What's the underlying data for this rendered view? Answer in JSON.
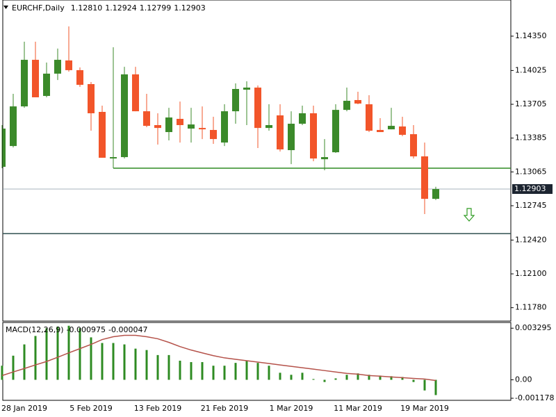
{
  "chart_data": [
    {
      "type": "candlestick",
      "title": "EURCHF,Daily",
      "categories": [
        null,
        null,
        "28 Jan 2019",
        null,
        null,
        null,
        null,
        null,
        "5 Feb 2019",
        null,
        null,
        null,
        null,
        null,
        "13 Feb 2019",
        null,
        null,
        null,
        null,
        null,
        "21 Feb 2019",
        null,
        null,
        null,
        null,
        null,
        "1 Mar 2019",
        null,
        null,
        null,
        null,
        null,
        "11 Mar 2019",
        null,
        null,
        null,
        null,
        null,
        "19 Mar 2019",
        null
      ],
      "open": [
        1.13113,
        1.1331,
        1.13685,
        1.14126,
        1.13784,
        1.13995,
        1.1412,
        1.14028,
        1.13896,
        1.13633,
        1.13192,
        1.13205,
        1.13988,
        1.13639,
        1.13508,
        1.13442,
        1.13567,
        1.13475,
        1.13481,
        1.13462,
        1.13343,
        1.13639,
        1.13843,
        1.13863,
        1.13481,
        1.136,
        1.13271,
        1.13521,
        1.1362,
        1.13185,
        1.13251,
        1.13652,
        1.13745,
        1.13705,
        1.13462,
        1.13468,
        1.13495,
        1.13422,
        1.13212,
        1.1281
      ],
      "high": [
        1.13508,
        1.13804,
        1.14297,
        1.14297,
        1.141,
        1.14232,
        1.14442,
        1.14054,
        1.13916,
        1.13692,
        1.14245,
        1.1406,
        1.1406,
        1.13804,
        1.1362,
        1.13672,
        1.13731,
        1.13672,
        1.13685,
        1.13587,
        1.13705,
        1.13903,
        1.13922,
        1.13883,
        1.13705,
        1.13705,
        1.13639,
        1.13692,
        1.13692,
        1.13376,
        1.13705,
        1.13863,
        1.13824,
        1.13791,
        1.13574,
        1.13672,
        1.13587,
        1.13508,
        1.13343,
        1.12924
      ],
      "low": [
        1.131,
        1.13297,
        1.13672,
        1.13771,
        1.13771,
        1.13935,
        1.14014,
        1.1387,
        1.13455,
        1.13199,
        1.131,
        1.13192,
        1.13639,
        1.13488,
        1.13324,
        1.13363,
        1.13343,
        1.13343,
        1.13376,
        1.1333,
        1.1331,
        1.13521,
        1.13508,
        1.13291,
        1.13455,
        1.13258,
        1.13139,
        1.13508,
        1.13166,
        1.1308,
        1.13245,
        1.13639,
        1.13705,
        1.13442,
        1.13442,
        1.13468,
        1.13403,
        1.13192,
        1.12666,
        1.12799
      ],
      "close": [
        1.13475,
        1.13685,
        1.14126,
        1.13771,
        1.13995,
        1.14126,
        1.14028,
        1.13889,
        1.1362,
        1.13199,
        1.13205,
        1.13988,
        1.13639,
        1.13501,
        1.13481,
        1.1358,
        1.13508,
        1.13514,
        1.13468,
        1.13376,
        1.13639,
        1.1385,
        1.13863,
        1.13481,
        1.13508,
        1.13278,
        1.13521,
        1.1362,
        1.13192,
        1.13205,
        1.13652,
        1.13738,
        1.13712,
        1.13455,
        1.13442,
        1.13501,
        1.13416,
        1.13212,
        1.1281,
        1.12903
      ],
      "last_bar_labels": [
        "1.12810",
        "1.12924",
        "1.12799",
        "1.12903"
      ],
      "up_color": "#3b8a2a",
      "down_color": "#f2552a",
      "ylim": [
        1.11653,
        1.14692
      ],
      "yticks": [
        {
          "value": 1.1435,
          "label": "1.14350"
        },
        {
          "value": 1.14025,
          "label": "1.14025"
        },
        {
          "value": 1.13705,
          "label": "1.13705"
        },
        {
          "value": 1.13385,
          "label": "1.13385"
        },
        {
          "value": 1.13065,
          "label": "1.13065"
        },
        {
          "value": 1.12745,
          "label": "1.12745"
        },
        {
          "value": 1.1242,
          "label": "1.12420"
        },
        {
          "value": 1.121,
          "label": "1.12100"
        },
        {
          "value": 1.1178,
          "label": "1.11780"
        }
      ],
      "support_line": {
        "value": 1.131,
        "start_index": 10,
        "color": "#2e8b22"
      },
      "level_line": {
        "value": 1.12481,
        "color": "#2f4f4f"
      },
      "price_line_color": "#8a9aa8"
    },
    {
      "type": "macd",
      "title": "MACD(12,26,9)",
      "histogram": [
        0.0009,
        0.00154,
        0.00226,
        0.0028,
        0.0033,
        0.0034,
        0.00345,
        0.0033,
        0.00271,
        0.00235,
        0.00235,
        0.00226,
        0.00199,
        0.0019,
        0.00158,
        0.00158,
        0.00122,
        0.00113,
        0.00113,
        0.0009,
        0.0009,
        0.00108,
        0.00122,
        0.00108,
        0.0009,
        0.00045,
        0.00032,
        0.00045,
        5e-05,
        -0.00014,
        9e-05,
        0.00032,
        0.00041,
        0.00032,
        0.00027,
        0.00023,
        0.00018,
        -0.00014,
        -0.00068,
        -0.000975
      ],
      "signal": [
        0.00027,
        0.0005,
        0.00072,
        0.00095,
        0.00117,
        0.00144,
        0.00172,
        0.00199,
        0.00226,
        0.00257,
        0.00275,
        0.00284,
        0.00284,
        0.00275,
        0.00262,
        0.00239,
        0.00212,
        0.0019,
        0.00172,
        0.00154,
        0.0014,
        0.00131,
        0.00122,
        0.00113,
        0.00104,
        0.00095,
        0.00086,
        0.00077,
        0.00068,
        0.00059,
        0.0005,
        0.00041,
        0.00036,
        0.00027,
        0.00023,
        0.00018,
        0.00014,
        9e-05,
        5e-05,
        -4.7e-05
      ],
      "histogram_color": "#2e8b22",
      "signal_color": "#b5524a",
      "ylim": [
        -0.00131,
        0.00366
      ],
      "yticks": [
        0.003295,
        {
          "value": 0,
          "label": "0.00"
        },
        -0.001178
      ]
    }
  ]
}
